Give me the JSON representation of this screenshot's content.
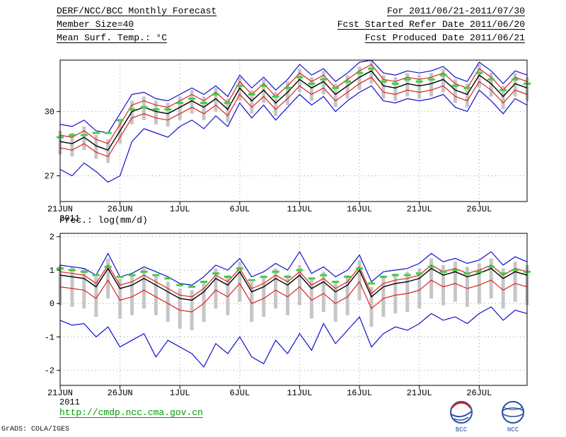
{
  "header": {
    "title": "DERF/NCC/BCC Monthly Forecast",
    "member_size": "Member Size=40",
    "variable": "Mean Surf. Temp.: °C",
    "for_range": "For 2011/06/21-2011/07/30",
    "refer_date": "Fcst Started Refer Date 2011/06/20",
    "produced_date": "Fcst Produced Date 2011/06/21"
  },
  "footer": {
    "url": "http://cmdp.ncc.cma.gov.cn",
    "credit": "GrADS: COLA/IGES",
    "logos": [
      {
        "label": "BCC"
      },
      {
        "label": "NCC"
      }
    ]
  },
  "colors": {
    "ensemble_bounds": "#1111cc",
    "quartiles": "#dd2222",
    "mean": "#000000",
    "climatology": "#44cc44",
    "member_bars": "#c6c6c6",
    "grid": "#999999",
    "frame": "#000000",
    "url_text": "#00a000"
  },
  "chart_data": [
    {
      "type": "line",
      "title": "Mean Surf. Temp.: °C",
      "xlabel": "",
      "ylabel": "",
      "x_year_label": "2011",
      "n_points": 40,
      "x_tick_labels": [
        "21JUN",
        "26JUN",
        "1JUL",
        "6JUL",
        "11JUL",
        "16JUL",
        "21JUL",
        "26JUL"
      ],
      "x_tick_positions": [
        0,
        5,
        10,
        15,
        20,
        25,
        30,
        35
      ],
      "ylim": [
        25.8,
        32.4
      ],
      "yticks": [
        27,
        30
      ],
      "grid": "dotted",
      "legend": "none",
      "members_bars": {
        "name": "ensemble-member-spread",
        "color": "#c6c6c6",
        "top": [
          29.1,
          29.0,
          29.3,
          28.9,
          28.7,
          29.6,
          30.5,
          30.7,
          30.5,
          30.4,
          30.7,
          31.0,
          30.7,
          31.1,
          30.6,
          31.6,
          31.0,
          31.5,
          30.9,
          31.4,
          32.0,
          31.6,
          31.9,
          31.3,
          31.7,
          32.1,
          32.4,
          31.7,
          31.6,
          31.8,
          31.7,
          31.8,
          32.0,
          31.5,
          31.3,
          32.2,
          31.8,
          31.2,
          31.8,
          31.6
        ],
        "bottom": [
          28.0,
          27.9,
          28.2,
          27.8,
          27.6,
          28.5,
          29.4,
          29.6,
          29.4,
          29.3,
          29.6,
          29.9,
          29.6,
          30.0,
          29.5,
          30.5,
          29.9,
          30.4,
          29.8,
          30.3,
          30.9,
          30.5,
          30.8,
          30.2,
          30.6,
          31.0,
          31.3,
          30.6,
          30.5,
          30.7,
          30.6,
          30.7,
          30.9,
          30.4,
          30.2,
          31.1,
          30.7,
          30.1,
          30.7,
          30.5
        ]
      },
      "series": [
        {
          "name": "ensemble-max",
          "color": "#1111cc",
          "width": 1.2,
          "style": "line",
          "values": [
            29.4,
            29.3,
            29.6,
            29.1,
            29.0,
            29.9,
            30.8,
            30.9,
            30.6,
            30.5,
            30.8,
            31.1,
            30.8,
            31.2,
            30.7,
            31.7,
            31.1,
            31.6,
            31.0,
            31.5,
            32.2,
            31.7,
            32.0,
            31.4,
            31.8,
            32.3,
            32.4,
            31.8,
            31.7,
            31.9,
            31.8,
            31.9,
            32.1,
            31.6,
            31.4,
            32.3,
            31.9,
            31.3,
            31.9,
            31.7
          ]
        },
        {
          "name": "ensemble-min",
          "color": "#1111cc",
          "width": 1.2,
          "style": "line",
          "values": [
            27.3,
            27.0,
            27.6,
            27.2,
            26.7,
            27.0,
            28.6,
            29.2,
            29.0,
            28.8,
            29.3,
            29.6,
            29.2,
            29.8,
            29.3,
            30.4,
            29.7,
            30.3,
            29.6,
            30.2,
            30.8,
            30.3,
            30.7,
            30.0,
            30.5,
            30.9,
            31.2,
            30.5,
            30.4,
            30.6,
            30.5,
            30.6,
            30.8,
            30.2,
            30.0,
            31.0,
            30.5,
            29.9,
            30.6,
            30.3
          ]
        },
        {
          "name": "upper-quartile",
          "color": "#dd2222",
          "width": 1.2,
          "style": "line",
          "values": [
            28.9,
            28.8,
            29.1,
            28.7,
            28.5,
            29.4,
            30.3,
            30.5,
            30.3,
            30.2,
            30.5,
            30.8,
            30.5,
            30.9,
            30.4,
            31.4,
            30.8,
            31.3,
            30.7,
            31.2,
            31.8,
            31.4,
            31.7,
            31.1,
            31.5,
            31.9,
            32.2,
            31.5,
            31.4,
            31.6,
            31.5,
            31.6,
            31.8,
            31.3,
            31.1,
            32.0,
            31.6,
            31.0,
            31.6,
            31.4
          ]
        },
        {
          "name": "lower-quartile",
          "color": "#dd2222",
          "width": 1.2,
          "style": "line",
          "values": [
            28.3,
            28.2,
            28.5,
            28.1,
            27.9,
            28.8,
            29.7,
            29.9,
            29.7,
            29.6,
            29.9,
            30.2,
            29.9,
            30.3,
            29.8,
            30.8,
            30.2,
            30.7,
            30.1,
            30.6,
            31.2,
            30.8,
            31.1,
            30.5,
            30.9,
            31.3,
            31.6,
            30.9,
            30.8,
            31.0,
            30.9,
            31.0,
            31.2,
            30.7,
            30.5,
            31.4,
            31.0,
            30.4,
            31.0,
            30.8
          ]
        },
        {
          "name": "ensemble-mean",
          "color": "#000000",
          "width": 1.4,
          "style": "line",
          "values": [
            28.6,
            28.5,
            28.8,
            28.4,
            28.2,
            29.1,
            30.0,
            30.2,
            30.0,
            29.9,
            30.2,
            30.5,
            30.2,
            30.6,
            30.1,
            31.1,
            30.5,
            31.0,
            30.4,
            30.9,
            31.5,
            31.1,
            31.4,
            30.8,
            31.2,
            31.6,
            31.9,
            31.2,
            31.1,
            31.3,
            31.2,
            31.3,
            31.5,
            31.0,
            30.8,
            31.7,
            31.3,
            30.7,
            31.3,
            31.1
          ]
        },
        {
          "name": "climatology",
          "color": "#44cc44",
          "width": 3,
          "style": "dash-markers",
          "values": [
            28.8,
            28.9,
            28.9,
            29.0,
            29.0,
            29.6,
            30.1,
            30.2,
            30.1,
            30.1,
            30.4,
            30.6,
            30.4,
            30.8,
            30.4,
            31.2,
            30.8,
            31.2,
            30.7,
            31.1,
            31.6,
            31.3,
            31.5,
            31.1,
            31.4,
            31.8,
            32.0,
            31.4,
            31.3,
            31.5,
            31.4,
            31.5,
            31.7,
            31.2,
            31.1,
            31.8,
            31.5,
            31.0,
            31.5,
            31.3
          ]
        }
      ]
    },
    {
      "type": "line",
      "title": "Prec.: log(mm/d)",
      "xlabel": "",
      "ylabel": "",
      "x_year_label": "2011",
      "n_points": 40,
      "x_tick_labels": [
        "21JUN",
        "26JUN",
        "1JUL",
        "6JUL",
        "11JUL",
        "16JUL",
        "21JUL",
        "26JUL"
      ],
      "x_tick_positions": [
        0,
        5,
        10,
        15,
        20,
        25,
        30,
        35
      ],
      "ylim": [
        -2.45,
        2.1
      ],
      "yticks": [
        -2,
        -1,
        0,
        1,
        2
      ],
      "grid": "dotted",
      "legend": "none",
      "members_bars": {
        "name": "ensemble-member-spread",
        "color": "#c6c6c6",
        "top": [
          1.15,
          1.1,
          1.05,
          0.8,
          1.35,
          0.75,
          0.85,
          1.05,
          0.85,
          0.65,
          0.45,
          0.4,
          0.65,
          1.05,
          0.85,
          1.25,
          0.65,
          0.8,
          1.05,
          0.85,
          1.15,
          0.75,
          0.95,
          0.65,
          0.85,
          1.3,
          0.5,
          0.8,
          0.9,
          0.95,
          1.05,
          1.35,
          1.15,
          1.25,
          1.1,
          1.2,
          1.35,
          1.05,
          1.25,
          1.15
        ],
        "bottom": [
          -0.05,
          -0.1,
          -0.15,
          -0.4,
          0.15,
          -0.45,
          -0.35,
          -0.15,
          -0.35,
          -0.55,
          -0.75,
          -0.8,
          -0.55,
          -0.15,
          -0.35,
          0.05,
          -0.55,
          -0.4,
          -0.15,
          -0.35,
          -0.05,
          -0.45,
          -0.25,
          -0.55,
          -0.35,
          0.1,
          -0.7,
          -0.4,
          -0.3,
          -0.25,
          -0.15,
          0.15,
          -0.05,
          0.05,
          -0.1,
          0.0,
          0.15,
          -0.15,
          0.05,
          -0.05
        ]
      },
      "series": [
        {
          "name": "ensemble-max",
          "color": "#1111cc",
          "width": 1.2,
          "style": "line",
          "values": [
            1.15,
            1.1,
            1.05,
            0.85,
            1.5,
            0.8,
            0.9,
            1.1,
            0.95,
            0.8,
            0.6,
            0.55,
            0.8,
            1.15,
            1.0,
            1.35,
            0.8,
            0.95,
            1.2,
            1.0,
            1.55,
            0.9,
            1.1,
            0.8,
            1.0,
            1.45,
            0.65,
            0.95,
            1.0,
            1.05,
            1.2,
            1.5,
            1.25,
            1.35,
            1.2,
            1.3,
            1.55,
            1.15,
            1.4,
            1.25
          ]
        },
        {
          "name": "ensemble-min",
          "color": "#1111cc",
          "width": 1.2,
          "style": "line",
          "values": [
            -0.5,
            -0.65,
            -0.6,
            -1.0,
            -0.7,
            -1.3,
            -1.1,
            -0.9,
            -1.6,
            -1.1,
            -1.3,
            -1.5,
            -1.9,
            -1.2,
            -1.5,
            -1.0,
            -1.6,
            -1.8,
            -1.1,
            -1.5,
            -0.9,
            -1.4,
            -0.6,
            -1.2,
            -0.8,
            -0.4,
            -1.3,
            -0.9,
            -0.7,
            -0.8,
            -0.6,
            -0.3,
            -0.5,
            -0.4,
            -0.6,
            -0.3,
            -0.1,
            -0.5,
            -0.2,
            -0.3
          ]
        },
        {
          "name": "upper-quartile",
          "color": "#dd2222",
          "width": 1.2,
          "style": "line",
          "values": [
            0.95,
            0.9,
            0.85,
            0.6,
            1.15,
            0.55,
            0.65,
            0.85,
            0.65,
            0.45,
            0.25,
            0.2,
            0.45,
            0.85,
            0.65,
            1.05,
            0.45,
            0.6,
            0.85,
            0.65,
            0.95,
            0.55,
            0.75,
            0.45,
            0.65,
            1.1,
            0.3,
            0.6,
            0.7,
            0.75,
            0.85,
            1.15,
            0.95,
            1.05,
            0.9,
            1.0,
            1.15,
            0.85,
            1.05,
            0.95
          ]
        },
        {
          "name": "lower-quartile",
          "color": "#dd2222",
          "width": 1.2,
          "style": "line",
          "values": [
            0.5,
            0.45,
            0.4,
            0.15,
            0.7,
            0.1,
            0.2,
            0.4,
            0.2,
            0.0,
            -0.2,
            -0.25,
            0.0,
            0.4,
            0.2,
            0.6,
            0.0,
            0.15,
            0.4,
            0.2,
            0.5,
            0.1,
            0.3,
            0.0,
            0.2,
            0.65,
            -0.15,
            0.15,
            0.25,
            0.3,
            0.4,
            0.7,
            0.5,
            0.6,
            0.45,
            0.55,
            0.7,
            0.4,
            0.6,
            0.5
          ]
        },
        {
          "name": "ensemble-mean",
          "color": "#000000",
          "width": 1.4,
          "style": "line",
          "values": [
            0.85,
            0.8,
            0.75,
            0.5,
            1.05,
            0.45,
            0.55,
            0.75,
            0.55,
            0.35,
            0.15,
            0.1,
            0.35,
            0.75,
            0.55,
            0.95,
            0.35,
            0.5,
            0.75,
            0.55,
            0.85,
            0.45,
            0.65,
            0.35,
            0.55,
            1.0,
            0.2,
            0.5,
            0.6,
            0.65,
            0.75,
            1.05,
            0.85,
            0.95,
            0.8,
            0.9,
            1.05,
            0.75,
            0.95,
            0.85
          ]
        },
        {
          "name": "climatology",
          "color": "#44cc44",
          "width": 3,
          "style": "dash-markers",
          "values": [
            1.05,
            1.0,
            0.95,
            0.85,
            1.1,
            0.8,
            0.85,
            0.95,
            0.85,
            0.75,
            0.55,
            0.5,
            0.65,
            0.9,
            0.8,
            1.05,
            0.7,
            0.8,
            0.95,
            0.8,
            1.0,
            0.75,
            0.85,
            0.65,
            0.8,
            1.05,
            0.6,
            0.8,
            0.85,
            0.85,
            0.9,
            1.1,
            0.95,
            1.0,
            0.9,
            0.95,
            1.1,
            0.9,
            1.0,
            0.95
          ]
        }
      ]
    }
  ]
}
